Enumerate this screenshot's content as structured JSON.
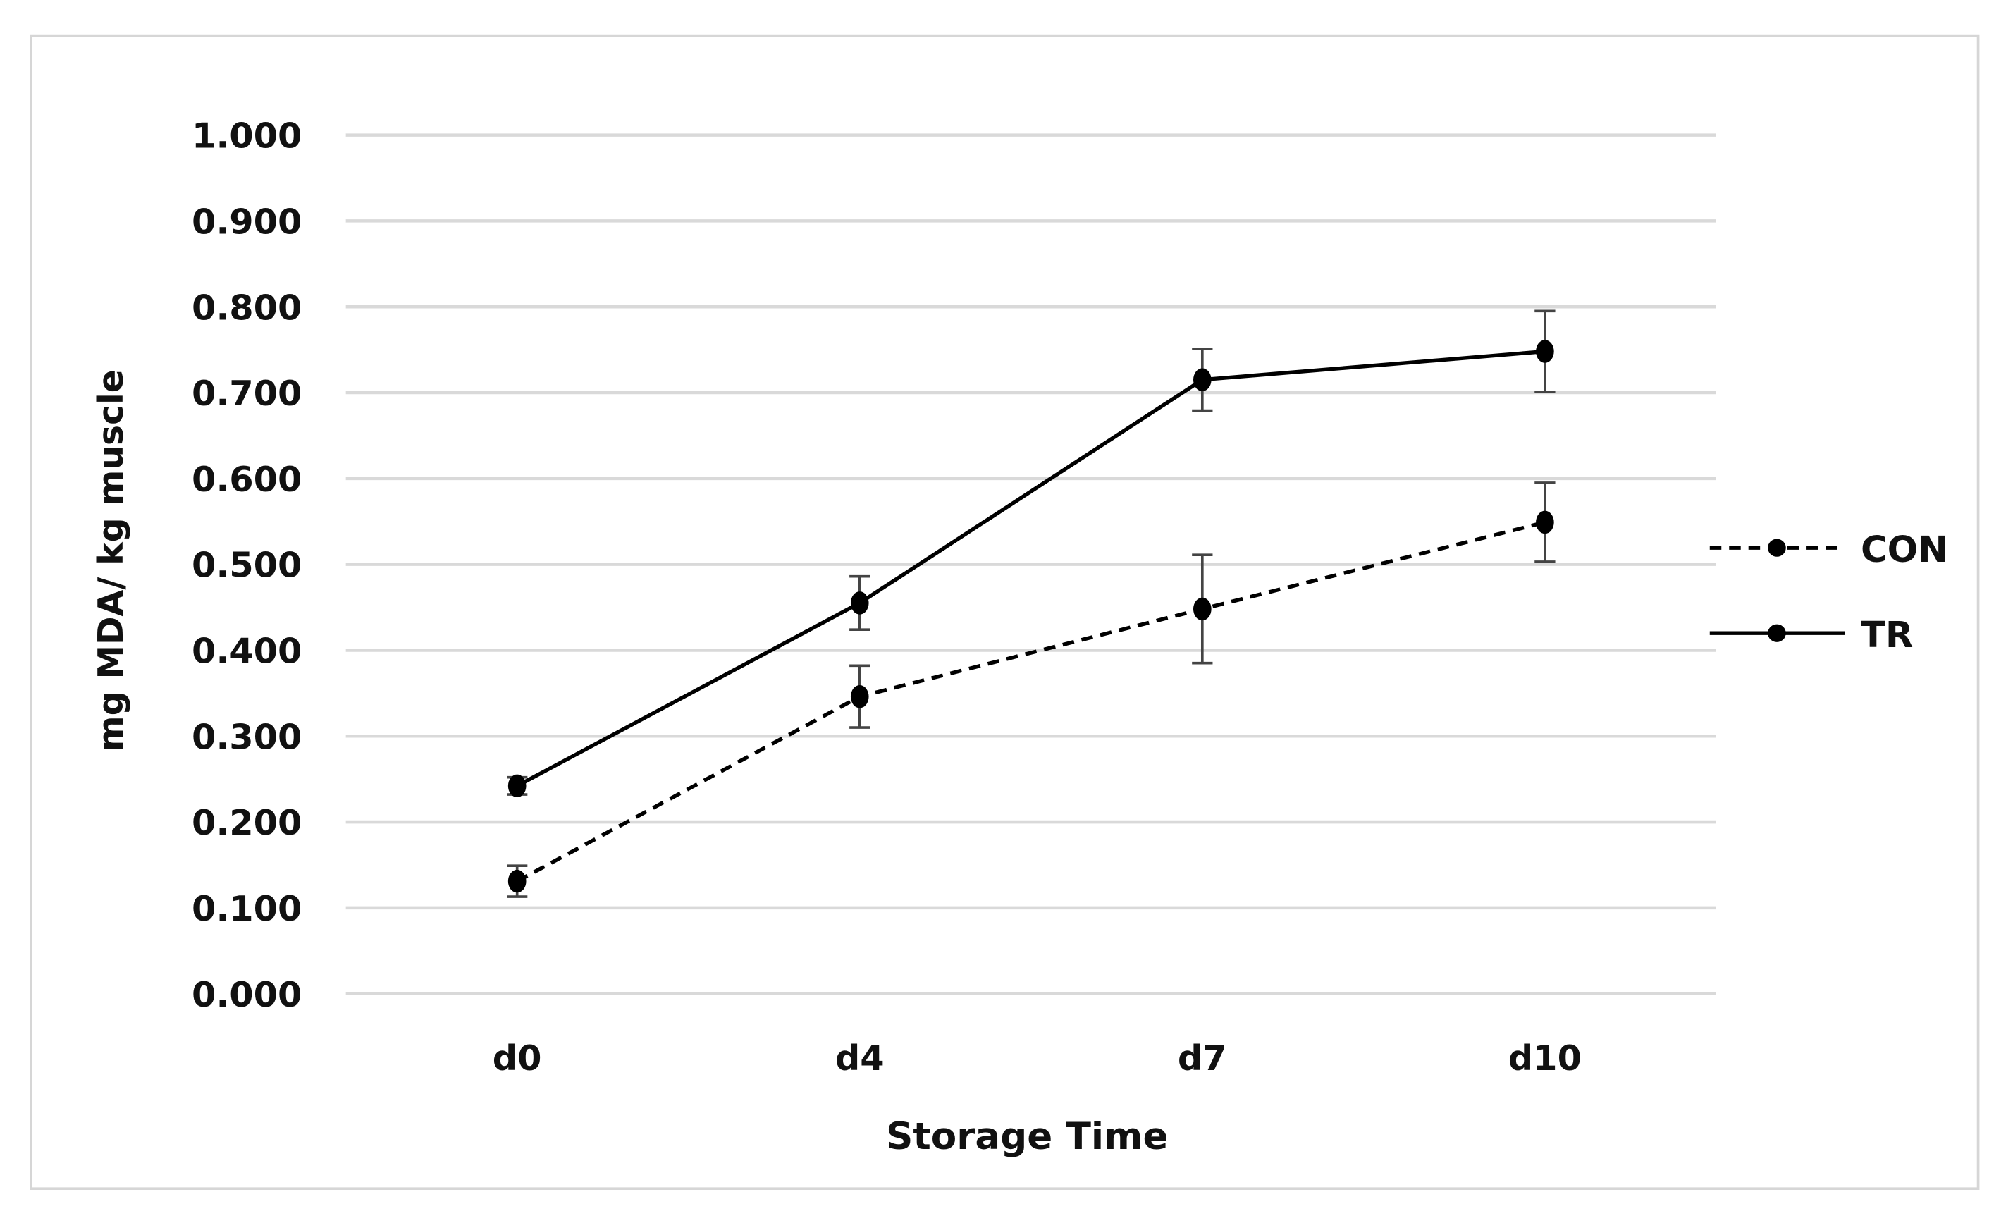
{
  "chart_data": {
    "type": "line",
    "title": "",
    "xlabel": "Storage Time",
    "ylabel": "mg MDA/ kg muscle",
    "categories": [
      "d0",
      "d4",
      "d7",
      "d10"
    ],
    "ylim": [
      0,
      1.0
    ],
    "yticks": [
      "0.000",
      "0.100",
      "0.200",
      "0.300",
      "0.400",
      "0.500",
      "0.600",
      "0.700",
      "0.800",
      "0.900",
      "1.000"
    ],
    "grid": true,
    "legend_position": "right",
    "series": [
      {
        "name": "CON",
        "style": "dashed",
        "marker": "circle",
        "color": "#000000",
        "values": [
          0.131,
          0.346,
          0.448,
          0.549
        ],
        "errors": [
          0.018,
          0.036,
          0.063,
          0.046
        ]
      },
      {
        "name": "TR",
        "style": "solid",
        "marker": "circle",
        "color": "#000000",
        "values": [
          0.242,
          0.455,
          0.715,
          0.748
        ],
        "errors": [
          0.01,
          0.031,
          0.036,
          0.047
        ]
      }
    ]
  }
}
